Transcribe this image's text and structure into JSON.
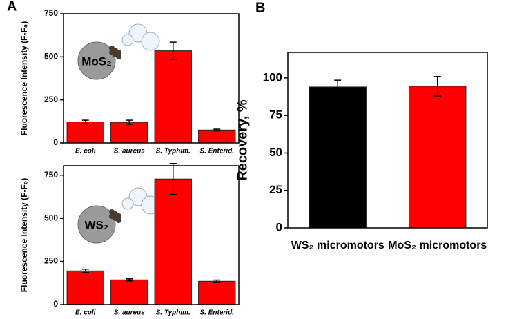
{
  "chart_data": [
    {
      "type": "bar",
      "panel_label": "A",
      "ylabel": "Fluorescence Intensity (F-F₀)",
      "annotation": "MoS₂",
      "categories": [
        "E. coli",
        "S. aureus",
        "S. Typhim.",
        "S. Enterid."
      ],
      "values": [
        122,
        120,
        535,
        75
      ],
      "errors": [
        10,
        12,
        50,
        5
      ],
      "color": "#ff0000",
      "ylim": [
        0,
        750
      ],
      "yticks": [
        0,
        250,
        500,
        750
      ]
    },
    {
      "type": "bar",
      "ylabel": "Fluorescence Intensity (F-F₀)",
      "annotation": "WS₂",
      "categories": [
        "E. coli",
        "S. aureus",
        "S. Typhim.",
        "S. Enterid."
      ],
      "values": [
        195,
        143,
        728,
        135
      ],
      "errors": [
        10,
        6,
        90,
        7
      ],
      "color": "#ff0000",
      "ylim": [
        0,
        805
      ],
      "yticks": [
        0,
        250,
        500,
        750
      ]
    },
    {
      "type": "bar",
      "panel_label": "B",
      "ylabel": "Recovery, %",
      "categories": [
        "WS₂ micromotors",
        "MoS₂ micromotors"
      ],
      "values": [
        94,
        94.5
      ],
      "errors": [
        4.5,
        6.5
      ],
      "colors": [
        "#000000",
        "#ff0000"
      ],
      "label_colors": [
        "#000000",
        "#ff0000"
      ],
      "ylim": [
        0,
        117
      ],
      "yticks": [
        0,
        25,
        50,
        75,
        100
      ]
    }
  ]
}
